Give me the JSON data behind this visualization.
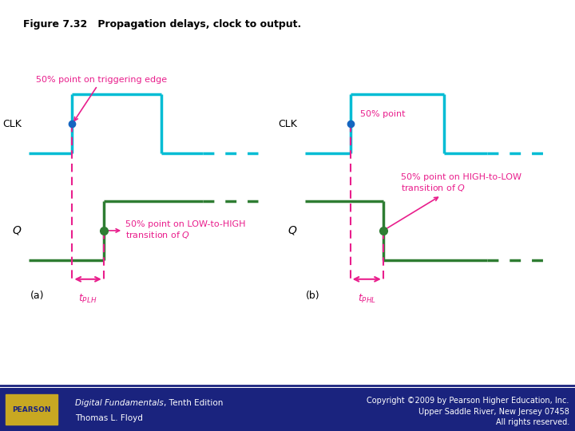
{
  "title": "Figure 7.32   Propagation delays, clock to output.",
  "bg_color": "#ffffff",
  "clk_color": "#00bcd4",
  "q_color": "#2e7d32",
  "annotation_color": "#e91e8c",
  "dot_color": "#1565c0",
  "footer_bg": "#1a237e",
  "footer_text_color": "#ffffff",
  "footer_left": "Digital Fundamentals, Tenth Edition\nThomas L. Floyd",
  "footer_right": "Copyright ©2009 by Pearson Higher Education, Inc.\nUpper Saddle River, New Jersey 07458\nAll rights reserved.",
  "pearson_bg": "#c8a84b",
  "pearson_text": "PEARSON"
}
